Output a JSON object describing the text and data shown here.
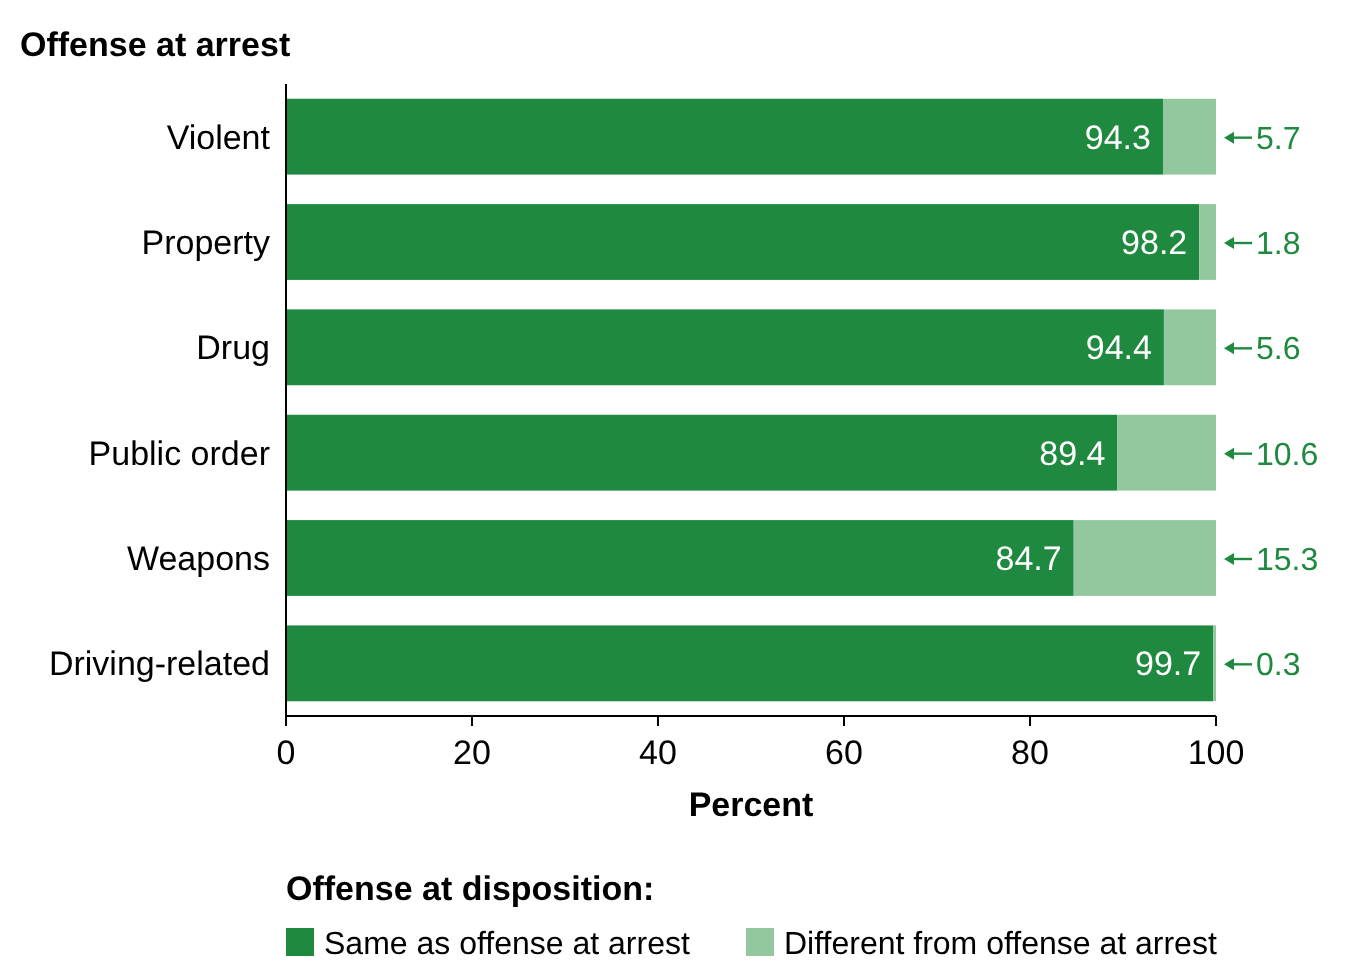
{
  "chart_data": {
    "type": "bar",
    "orientation": "horizontal",
    "stacked": true,
    "ylabel": "Offense at arrest",
    "xlabel": "Percent",
    "legend_title": "Offense at disposition:",
    "legend": "bottom",
    "data_labels": true,
    "grid": false,
    "categories": [
      "Violent",
      "Property",
      "Drug",
      "Public order",
      "Weapons",
      "Driving-related"
    ],
    "xlim": [
      0,
      100
    ],
    "xticks": [
      0,
      20,
      40,
      60,
      80,
      100
    ],
    "series": [
      {
        "name": "Same as offense at arrest",
        "color": "#1f8a3f",
        "values": [
          94.3,
          98.2,
          94.4,
          89.4,
          84.7,
          99.7
        ]
      },
      {
        "name": "Different from offense at arrest",
        "color": "#93c89f",
        "values": [
          5.7,
          1.8,
          5.6,
          10.6,
          15.3,
          0.3
        ]
      }
    ]
  }
}
